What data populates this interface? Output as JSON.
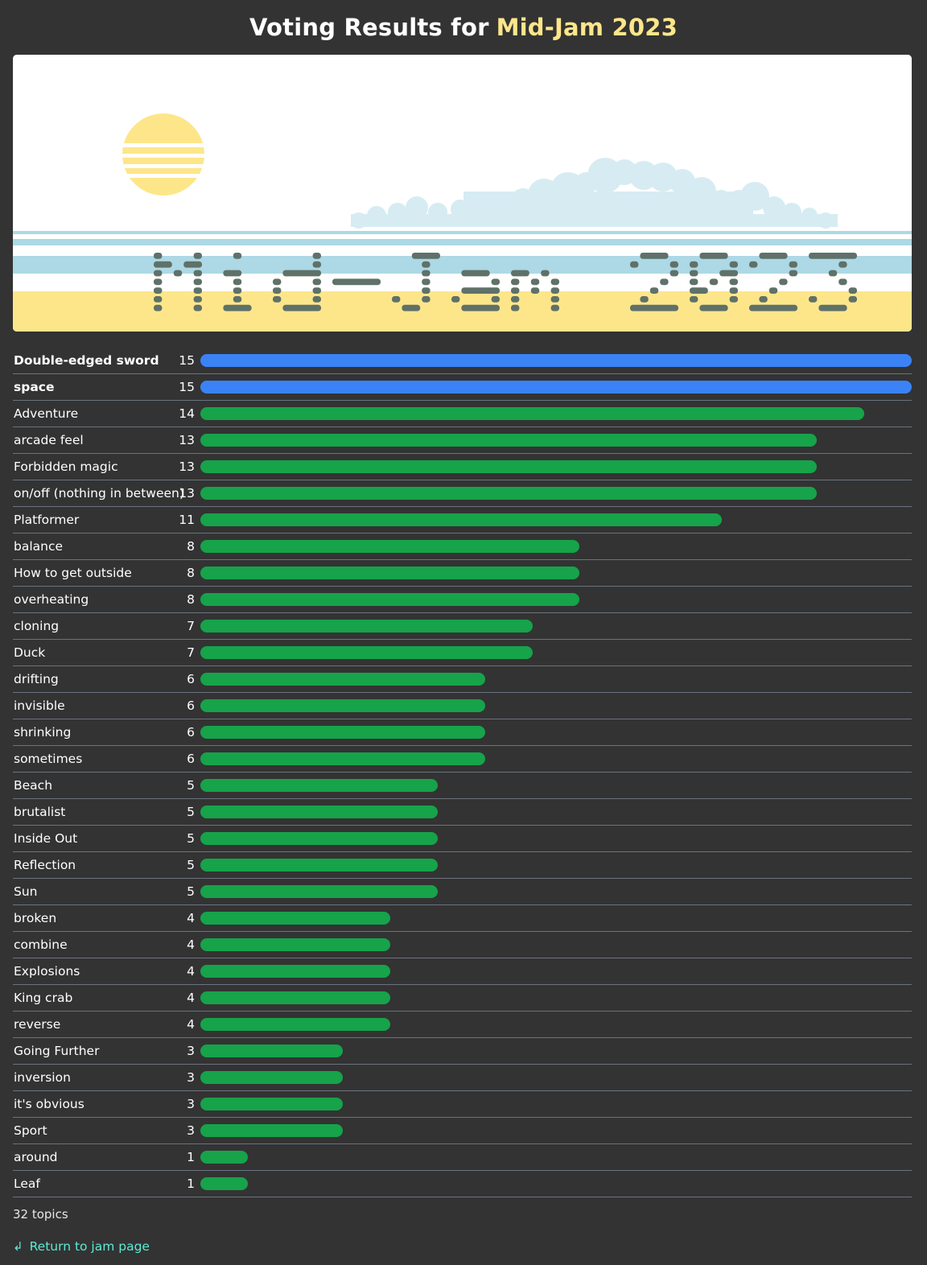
{
  "header": {
    "title_prefix": "Voting Results for",
    "title_highlight": "Mid-Jam 2023"
  },
  "colors": {
    "background": "#333333",
    "highlight": "#fde68a",
    "bar_top": "#3b82f6",
    "bar_default": "#16a34a",
    "link": "#5eead4"
  },
  "banner": {
    "text": "Mid-Jam 2023"
  },
  "results": {
    "max_votes": 15,
    "rows": [
      {
        "topic": "Double-edged sword",
        "votes": 15,
        "top": true
      },
      {
        "topic": "space",
        "votes": 15,
        "top": true
      },
      {
        "topic": "Adventure",
        "votes": 14
      },
      {
        "topic": "arcade feel",
        "votes": 13
      },
      {
        "topic": "Forbidden magic",
        "votes": 13
      },
      {
        "topic": "on/off (nothing in between)",
        "votes": 13
      },
      {
        "topic": "Platformer",
        "votes": 11
      },
      {
        "topic": "balance",
        "votes": 8
      },
      {
        "topic": "How to get outside",
        "votes": 8
      },
      {
        "topic": "overheating",
        "votes": 8
      },
      {
        "topic": "cloning",
        "votes": 7
      },
      {
        "topic": "Duck",
        "votes": 7
      },
      {
        "topic": "drifting",
        "votes": 6
      },
      {
        "topic": "invisible",
        "votes": 6
      },
      {
        "topic": "shrinking",
        "votes": 6
      },
      {
        "topic": "sometimes",
        "votes": 6
      },
      {
        "topic": "Beach",
        "votes": 5
      },
      {
        "topic": "brutalist",
        "votes": 5
      },
      {
        "topic": "Inside Out",
        "votes": 5
      },
      {
        "topic": "Reflection",
        "votes": 5
      },
      {
        "topic": "Sun",
        "votes": 5
      },
      {
        "topic": "broken",
        "votes": 4
      },
      {
        "topic": "combine",
        "votes": 4
      },
      {
        "topic": "Explosions",
        "votes": 4
      },
      {
        "topic": "King crab",
        "votes": 4
      },
      {
        "topic": "reverse",
        "votes": 4
      },
      {
        "topic": "Going Further",
        "votes": 3
      },
      {
        "topic": "inversion",
        "votes": 3
      },
      {
        "topic": "it's obvious",
        "votes": 3
      },
      {
        "topic": "Sport",
        "votes": 3
      },
      {
        "topic": "around",
        "votes": 1
      },
      {
        "topic": "Leaf",
        "votes": 1
      }
    ]
  },
  "footer": {
    "topic_count": "32 topics",
    "return_label": "Return to jam page",
    "return_icon": "return-arrow-icon"
  }
}
